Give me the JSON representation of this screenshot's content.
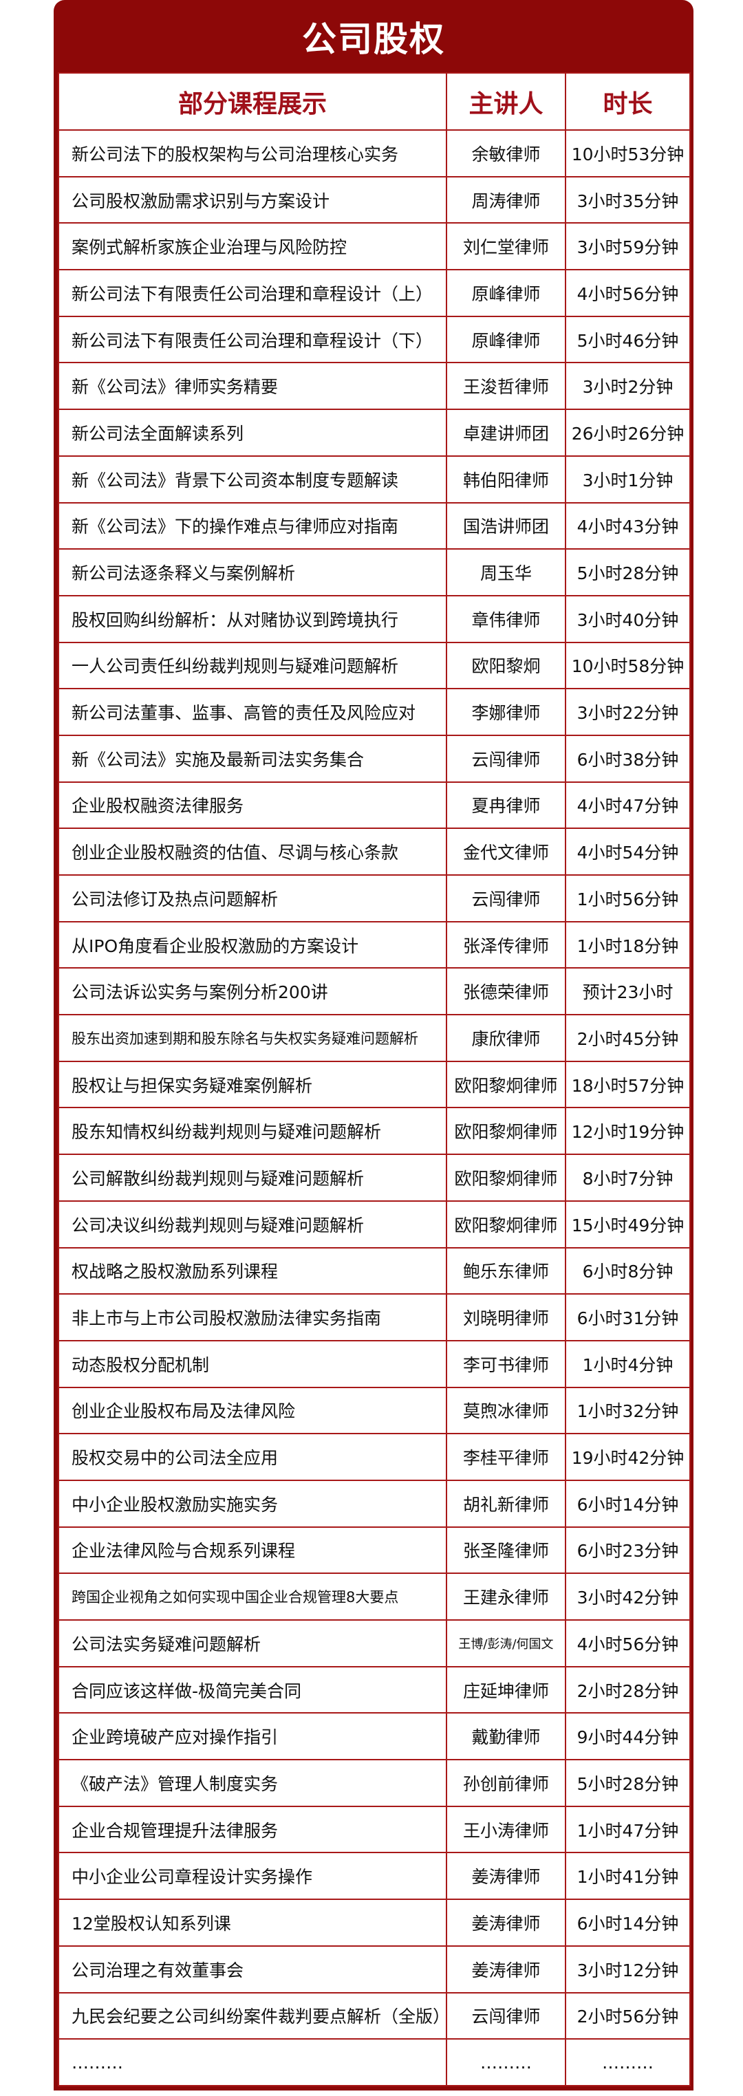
{
  "title": "公司股权",
  "colors": {
    "frame": "#8d0808",
    "header_text": "#a0101a",
    "grid": "#a81818"
  },
  "table": {
    "headers": [
      "部分课程展示",
      "主讲人",
      "时长"
    ],
    "rows": [
      [
        "新公司法下的股权架构与公司治理核心实务",
        "余敏律师",
        "10小时53分钟"
      ],
      [
        "公司股权激励需求识别与方案设计",
        "周涛律师",
        "3小时35分钟"
      ],
      [
        "案例式解析家族企业治理与风险防控",
        "刘仁堂律师",
        "3小时59分钟"
      ],
      [
        "新公司法下有限责任公司治理和章程设计（上）",
        "原峰律师",
        "4小时56分钟"
      ],
      [
        "新公司法下有限责任公司治理和章程设计（下）",
        "原峰律师",
        "5小时46分钟"
      ],
      [
        "新《公司法》律师实务精要",
        "王浚哲律师",
        "3小时2分钟"
      ],
      [
        "新公司法全面解读系列",
        "卓建讲师团",
        "26小时26分钟"
      ],
      [
        "新《公司法》背景下公司资本制度专题解读",
        "韩伯阳律师",
        "3小时1分钟"
      ],
      [
        "新《公司法》下的操作难点与律师应对指南",
        "国浩讲师团",
        "4小时43分钟"
      ],
      [
        "新公司法逐条释义与案例解析",
        "周玉华",
        "5小时28分钟"
      ],
      [
        "股权回购纠纷解析：从对赌协议到跨境执行",
        "章伟律师",
        "3小时40分钟"
      ],
      [
        "一人公司责任纠纷裁判规则与疑难问题解析",
        "欧阳黎炯",
        "10小时58分钟"
      ],
      [
        "新公司法董事、监事、高管的责任及风险应对",
        "李娜律师",
        "3小时22分钟"
      ],
      [
        "新《公司法》实施及最新司法实务集合",
        "云闯律师",
        "6小时38分钟"
      ],
      [
        "企业股权融资法律服务",
        "夏冉律师",
        "4小时47分钟"
      ],
      [
        "创业企业股权融资的估值、尽调与核心条款",
        "金代文律师",
        "4小时54分钟"
      ],
      [
        "公司法修订及热点问题解析",
        "云闯律师",
        "1小时56分钟"
      ],
      [
        "从IPO角度看企业股权激励的方案设计",
        "张泽传律师",
        "1小时18分钟"
      ],
      [
        "公司法诉讼实务与案例分析200讲",
        "张德荣律师",
        "预计23小时"
      ],
      [
        "股东出资加速到期和股东除名与失权实务疑难问题解析",
        "康欣律师",
        "2小时45分钟"
      ],
      [
        "股权让与担保实务疑难案例解析",
        "欧阳黎炯律师",
        "18小时57分钟"
      ],
      [
        "股东知情权纠纷裁判规则与疑难问题解析",
        "欧阳黎炯律师",
        "12小时19分钟"
      ],
      [
        "公司解散纠纷裁判规则与疑难问题解析",
        "欧阳黎炯律师",
        "8小时7分钟"
      ],
      [
        "公司决议纠纷裁判规则与疑难问题解析",
        "欧阳黎炯律师",
        "15小时49分钟"
      ],
      [
        "权战略之股权激励系列课程",
        "鲍乐东律师",
        "6小时8分钟"
      ],
      [
        "非上市与上市公司股权激励法律实务指南",
        "刘晓明律师",
        "6小时31分钟"
      ],
      [
        "动态股权分配机制",
        "李可书律师",
        "1小时4分钟"
      ],
      [
        "创业企业股权布局及法律风险",
        "莫煦冰律师",
        "1小时32分钟"
      ],
      [
        "股权交易中的公司法全应用",
        "李桂平律师",
        "19小时42分钟"
      ],
      [
        "中小企业股权激励实施实务",
        "胡礼新律师",
        "6小时14分钟"
      ],
      [
        "企业法律风险与合规系列课程",
        "张圣隆律师",
        "6小时23分钟"
      ],
      [
        "跨国企业视角之如何实现中国企业合规管理8大要点",
        "王建永律师",
        "3小时42分钟"
      ],
      [
        "公司法实务疑难问题解析",
        "王博/彭涛/何国文",
        "4小时56分钟"
      ],
      [
        "合同应该这样做-极简完美合同",
        "庄延坤律师",
        "2小时28分钟"
      ],
      [
        "企业跨境破产应对操作指引",
        "戴勤律师",
        "9小时44分钟"
      ],
      [
        "《破产法》管理人制度实务",
        "孙创前律师",
        "5小时28分钟"
      ],
      [
        "企业合规管理提升法律服务",
        "王小涛律师",
        "1小时47分钟"
      ],
      [
        "中小企业公司章程设计实务操作",
        "姜涛律师",
        "1小时41分钟"
      ],
      [
        "12堂股权认知系列课",
        "姜涛律师",
        "6小时14分钟"
      ],
      [
        "公司治理之有效董事会",
        "姜涛律师",
        "3小时12分钟"
      ],
      [
        "九民会纪要之公司纠纷案件裁判要点解析（全版）",
        "云闯律师",
        "2小时56分钟"
      ],
      [
        "………",
        "………",
        "………"
      ]
    ]
  }
}
